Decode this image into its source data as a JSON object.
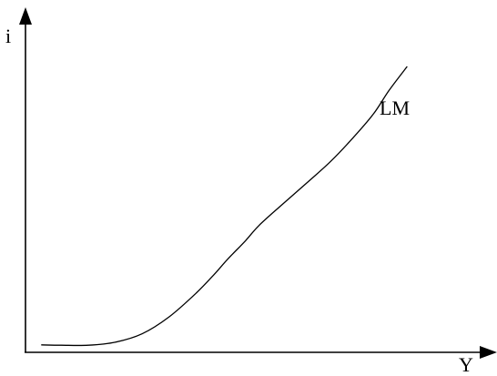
{
  "chart_data": {
    "type": "line",
    "xlabel": "Y",
    "ylabel": "i",
    "grid": false,
    "series": [
      {
        "name": "LM",
        "color": "#000000",
        "x": [
          0.35,
          0.8,
          1.4,
          2.0,
          2.6,
          3.2,
          3.8,
          4.2,
          4.5,
          4.9,
          5.2,
          5.7,
          6.3,
          6.8,
          7.3,
          7.75,
          8.1,
          8.5
        ],
        "y": [
          0.22,
          0.21,
          0.21,
          0.3,
          0.55,
          1.05,
          1.75,
          2.3,
          2.75,
          3.3,
          3.75,
          4.35,
          5.05,
          5.65,
          6.35,
          7.05,
          7.75,
          8.45
        ]
      }
    ],
    "xlim": [
      0,
      10.5
    ],
    "ylim": [
      0,
      10.2
    ]
  }
}
